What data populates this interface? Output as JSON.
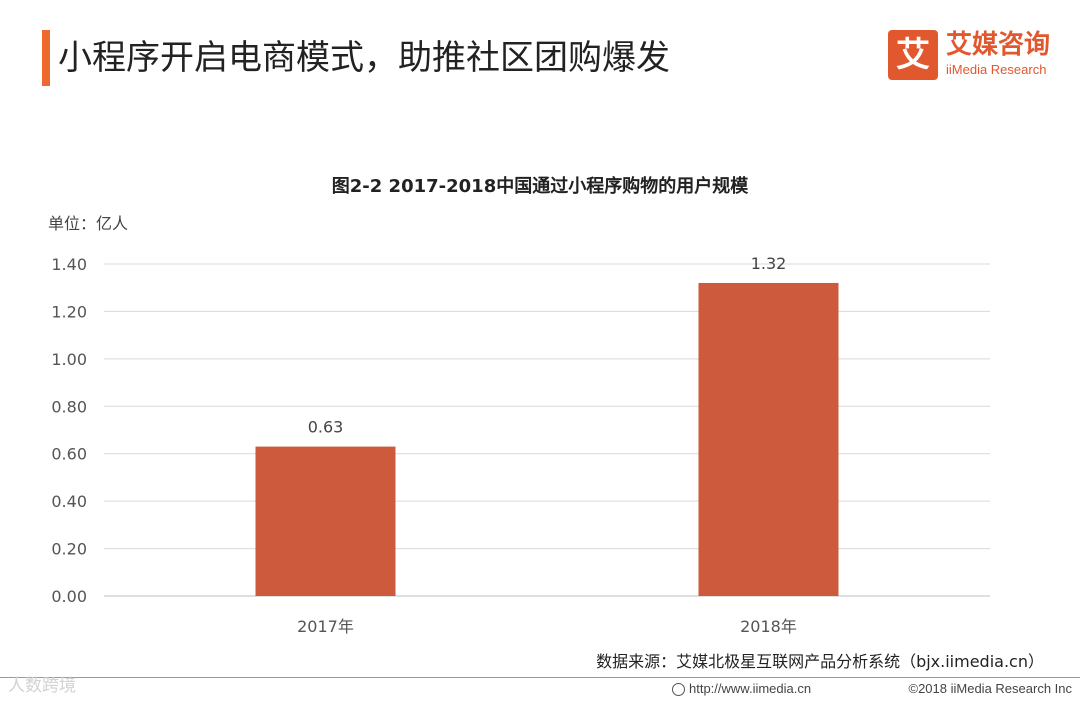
{
  "header": {
    "title": "小程序开启电商模式，助推社区团购爆发"
  },
  "logo": {
    "glyph": "艾",
    "name_cn": "艾媒咨询",
    "name_en": "iiMedia Research"
  },
  "colors": {
    "accent": "#ee6a2c",
    "bar": "#cd5a3c",
    "logo": "#e1582f",
    "grid": "#d9d9d9"
  },
  "chart_data": {
    "type": "bar",
    "title": "图2-2 2017-2018中国通过小程序购物的用户规模",
    "unit_label": "单位：亿人",
    "categories": [
      "2017年",
      "2018年"
    ],
    "values": [
      0.63,
      1.32
    ],
    "value_labels": [
      "0.63",
      "1.32"
    ],
    "yticks": [
      "0.00",
      "0.20",
      "0.40",
      "0.60",
      "0.80",
      "1.00",
      "1.20",
      "1.40"
    ],
    "ylim": [
      0,
      1.4
    ],
    "xlabel": "",
    "ylabel": "",
    "grid": true,
    "legend": "none"
  },
  "source": "数据来源：艾媒北极星互联网产品分析系统（bjx.iimedia.cn）",
  "footer": {
    "watermark": "人数跨境",
    "url": "http://www.iimedia.cn",
    "copyright": "©2018  iiMedia Research  Inc"
  }
}
